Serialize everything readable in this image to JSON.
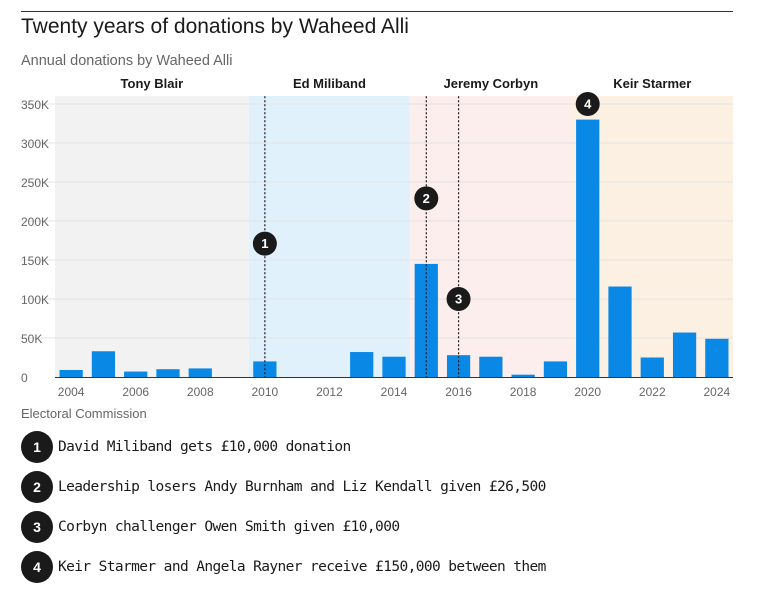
{
  "header": {
    "title": "Twenty years of donations by Waheed Alli",
    "subtitle": "Annual donations by Waheed Alli",
    "source": "Electoral Commission"
  },
  "colors": {
    "bar": "#0a88e6",
    "grid": "#e3e3e3",
    "axis_text": "#666666",
    "marker": "#1a1a1a"
  },
  "chart_data": {
    "type": "bar",
    "title": "Annual donations by Waheed Alli",
    "xlabel": "",
    "ylabel": "",
    "ylim": [
      0,
      350000
    ],
    "yticks": [
      0,
      50000,
      100000,
      150000,
      200000,
      250000,
      300000,
      350000
    ],
    "ytick_labels": [
      "0",
      "50K",
      "100K",
      "150K",
      "200K",
      "250K",
      "300K",
      "350K"
    ],
    "xtick_labels": [
      "2004",
      "2006",
      "2008",
      "2010",
      "2012",
      "2014",
      "2016",
      "2018",
      "2020",
      "2022",
      "2024"
    ],
    "xlim": [
      2003.5,
      2024.5
    ],
    "grid": true,
    "categories": [
      2004,
      2005,
      2006,
      2007,
      2008,
      2009,
      2010,
      2011,
      2012,
      2013,
      2014,
      2015,
      2016,
      2017,
      2018,
      2019,
      2020,
      2021,
      2022,
      2023,
      2024
    ],
    "values": [
      9000,
      33000,
      7000,
      10000,
      11000,
      0,
      20000,
      0,
      0,
      32000,
      26000,
      145000,
      28000,
      26000,
      3000,
      20000,
      330000,
      116000,
      25000,
      57000,
      49000
    ],
    "eras": [
      {
        "label": "Tony Blair",
        "from": 2003.5,
        "to": 2009.5,
        "color": "#f2f2f2"
      },
      {
        "label": "Ed Miliband",
        "from": 2009.5,
        "to": 2014.5,
        "color": "#e1f1fb"
      },
      {
        "label": "Jeremy Corbyn",
        "from": 2014.5,
        "to": 2019.5,
        "color": "#fdeeee"
      },
      {
        "label": "Keir Starmer",
        "from": 2019.5,
        "to": 2024.5,
        "color": "#fbf0e1"
      }
    ],
    "annotations": [
      {
        "id": "1",
        "x": 2010,
        "label_value": 171000,
        "line_top_value": 360000
      },
      {
        "id": "2",
        "x": 2015,
        "label_value": 229000,
        "line_top_value": 360000
      },
      {
        "id": "3",
        "x": 2016,
        "label_value": 100000,
        "line_top_value": 360000
      },
      {
        "id": "4",
        "x": 2020,
        "label_value": 350000,
        "line_top_value": null
      }
    ]
  },
  "notes": [
    {
      "num": "1",
      "text": "David Miliband gets £10,000 donation"
    },
    {
      "num": "2",
      "text": "Leadership losers Andy Burnham and Liz Kendall given £26,500"
    },
    {
      "num": "3",
      "text": "Corbyn challenger Owen Smith given £10,000"
    },
    {
      "num": "4",
      "text": "Keir Starmer and Angela Rayner receive £150,000 between them"
    }
  ]
}
